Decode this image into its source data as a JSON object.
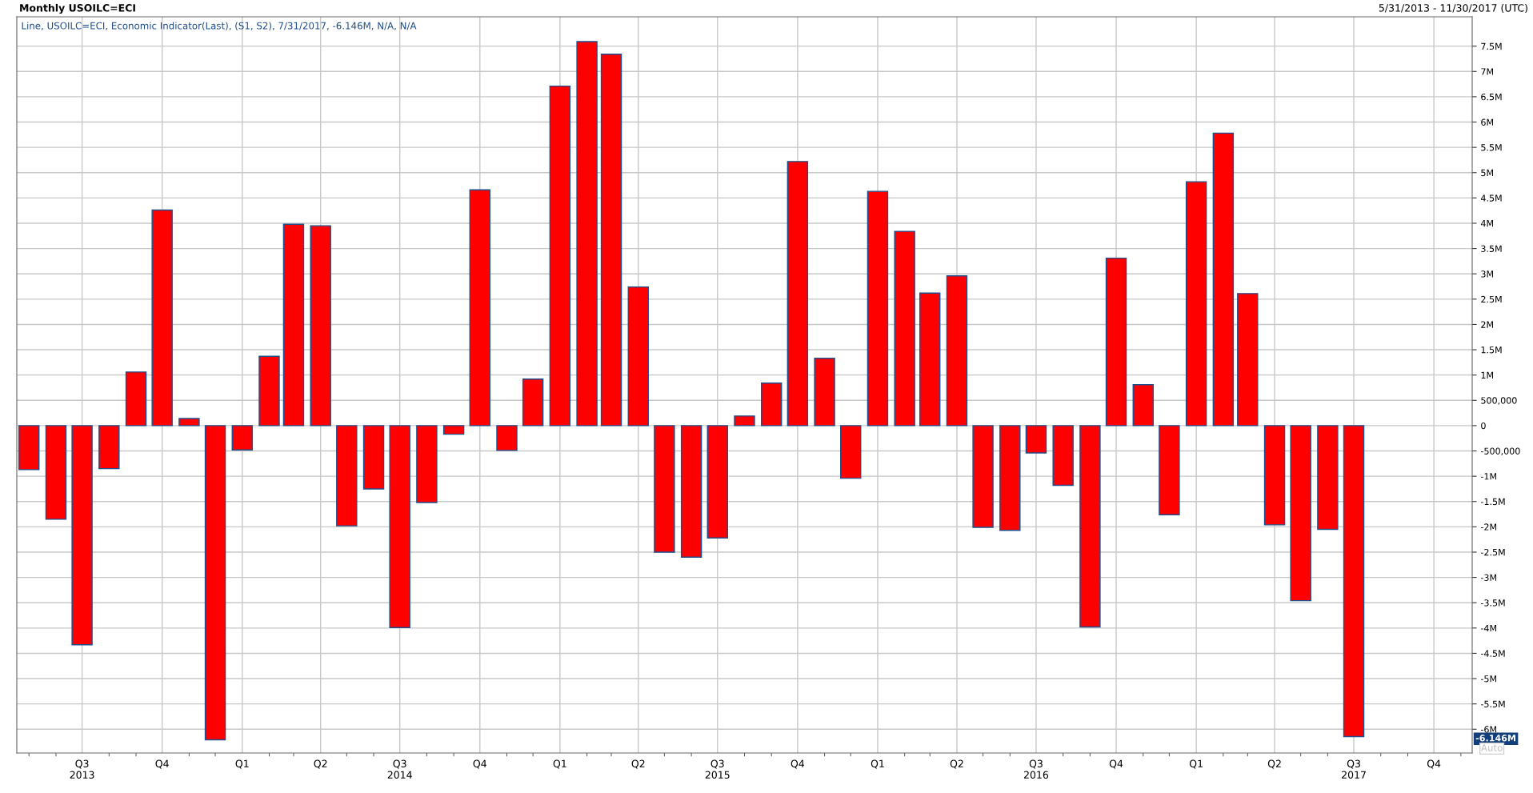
{
  "chart_data": {
    "type": "bar",
    "title": "Monthly USOILC=ECI",
    "subtitle": "5/31/2013 - 11/30/2017 (UTC)",
    "annotations": [
      "Line, USOILC=ECI, Economic Indicator(Last), (S1, S2), 7/31/2017, -6.146M, N/A, N/A",
      "-6.146M",
      "Auto"
    ],
    "x": [
      "2013-05",
      "2013-06",
      "2013-07",
      "2013-08",
      "2013-09",
      "2013-10",
      "2013-11",
      "2013-12",
      "2014-01",
      "2014-02",
      "2014-03",
      "2014-04",
      "2014-05",
      "2014-06",
      "2014-07",
      "2014-08",
      "2014-09",
      "2014-10",
      "2014-11",
      "2014-12",
      "2015-01",
      "2015-02",
      "2015-03",
      "2015-04",
      "2015-05",
      "2015-06",
      "2015-07",
      "2015-08",
      "2015-09",
      "2015-10",
      "2015-11",
      "2015-12",
      "2016-01",
      "2016-02",
      "2016-03",
      "2016-04",
      "2016-05",
      "2016-06",
      "2016-07",
      "2016-08",
      "2016-09",
      "2016-10",
      "2016-11",
      "2016-12",
      "2017-01",
      "2017-02",
      "2017-03",
      "2017-04",
      "2017-05",
      "2017-06",
      "2017-07"
    ],
    "series": [
      {
        "color": "#ff0000",
        "values": [
          -870000,
          -1850000,
          -4330000,
          -850000,
          1060000,
          4260000,
          140000,
          -6210000,
          -480000,
          1370000,
          3980000,
          3950000,
          -1980000,
          -1250000,
          -3990000,
          -1520000,
          -170000,
          4660000,
          -490000,
          920000,
          6710000,
          7590000,
          7340000,
          2740000,
          -2500000,
          -2600000,
          -2220000,
          190000,
          840000,
          5220000,
          1330000,
          -1040000,
          4630000,
          3840000,
          2620000,
          2960000,
          -2010000,
          -2070000,
          -540000,
          -1180000,
          -3980000,
          3310000,
          810000,
          -1760000,
          4820000,
          5780000,
          2610000,
          -1960000,
          -3460000,
          -2050000,
          -6146000
        ]
      }
    ],
    "xlim": [
      "2013-04-17",
      "2017-11-14"
    ],
    "xticks": [
      {
        "value": "2013-07-01",
        "label": "Q3\n2013"
      },
      {
        "value": "2013-10-01",
        "label": "Q4"
      },
      {
        "value": "2014-01-01",
        "label": "Q1"
      },
      {
        "value": "2014-04-01",
        "label": "Q2"
      },
      {
        "value": "2014-07-01",
        "label": "Q3\n2014"
      },
      {
        "value": "2014-10-01",
        "label": "Q4"
      },
      {
        "value": "2015-01-01",
        "label": "Q1"
      },
      {
        "value": "2015-04-01",
        "label": "Q2"
      },
      {
        "value": "2015-07-01",
        "label": "Q3\n2015"
      },
      {
        "value": "2015-10-01",
        "label": "Q4"
      },
      {
        "value": "2016-01-01",
        "label": "Q1"
      },
      {
        "value": "2016-04-01",
        "label": "Q2"
      },
      {
        "value": "2016-07-01",
        "label": "Q3\n2016"
      },
      {
        "value": "2016-10-01",
        "label": "Q4"
      },
      {
        "value": "2017-01-01",
        "label": "Q1"
      },
      {
        "value": "2017-04-01",
        "label": "Q2"
      },
      {
        "value": "2017-07-01",
        "label": "Q3\n2017"
      },
      {
        "value": "2017-10-01",
        "label": "Q4"
      }
    ],
    "ylim": [
      -6470000,
      8080000
    ],
    "yticks": [
      {
        "value": -6000000,
        "label": "-6M"
      },
      {
        "value": -5500000,
        "label": "-5.5M"
      },
      {
        "value": -5000000,
        "label": "-5M"
      },
      {
        "value": -4500000,
        "label": "-4.5M"
      },
      {
        "value": -4000000,
        "label": "-4M"
      },
      {
        "value": -3500000,
        "label": "-3.5M"
      },
      {
        "value": -3000000,
        "label": "-3M"
      },
      {
        "value": -2500000,
        "label": "-2.5M"
      },
      {
        "value": -2000000,
        "label": "-2M"
      },
      {
        "value": -1500000,
        "label": "-1.5M"
      },
      {
        "value": -1000000,
        "label": "-1M"
      },
      {
        "value": -500000,
        "label": "-500,000"
      },
      0,
      {
        "value": 500000,
        "label": "500,000"
      },
      {
        "value": 1000000,
        "label": "1M"
      },
      {
        "value": 1500000,
        "label": "1.5M"
      },
      {
        "value": 2000000,
        "label": "2M"
      },
      {
        "value": 2500000,
        "label": "2.5M"
      },
      {
        "value": 3000000,
        "label": "3M"
      },
      {
        "value": 3500000,
        "label": "3.5M"
      },
      {
        "value": 4000000,
        "label": "4M"
      },
      {
        "value": 4500000,
        "label": "4.5M"
      },
      {
        "value": 5000000,
        "label": "5M"
      },
      {
        "value": 5500000,
        "label": "5.5M"
      },
      {
        "value": 6000000,
        "label": "6M"
      },
      {
        "value": 6500000,
        "label": "6.5M"
      },
      {
        "value": 7000000,
        "label": "7M"
      },
      {
        "value": 7500000,
        "label": "7.5M"
      }
    ],
    "grid": true,
    "legend": false
  }
}
